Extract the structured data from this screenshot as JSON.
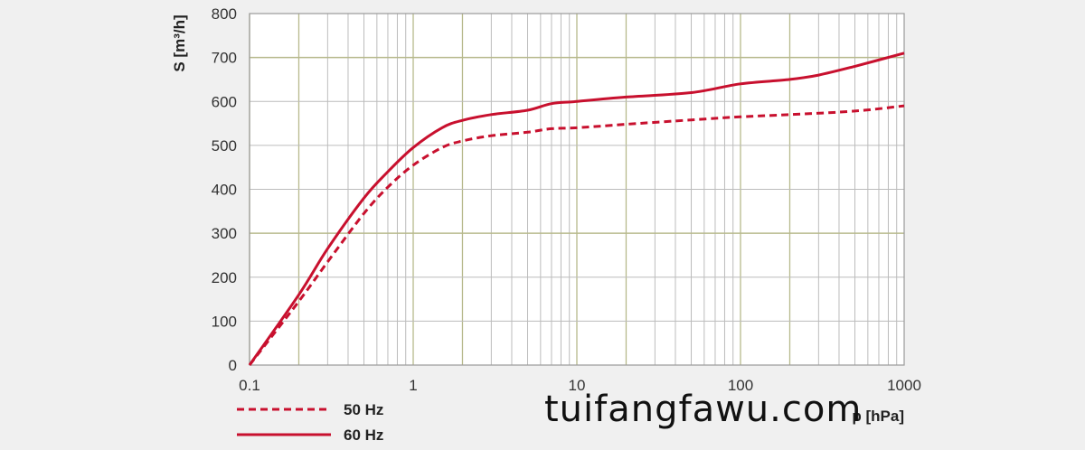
{
  "chart_data": {
    "type": "line",
    "xlabel": "p [hPa]",
    "ylabel": "S [m³/h]",
    "xscale": "log",
    "xlim": [
      0.1,
      1000
    ],
    "ylim": [
      0,
      800
    ],
    "xticks": [
      "0.1",
      "1",
      "10",
      "100",
      "1000"
    ],
    "yticks": [
      "0",
      "100",
      "200",
      "300",
      "400",
      "500",
      "600",
      "700",
      "800"
    ],
    "grid": true,
    "legend_position": "bottom-left",
    "series": [
      {
        "name": "50 Hz",
        "style": "dashed",
        "color": "#c8102e",
        "x": [
          0.1,
          0.2,
          0.3,
          0.5,
          0.7,
          1,
          1.5,
          2,
          3,
          5,
          7,
          10,
          20,
          50,
          100,
          200,
          500,
          1000
        ],
        "y": [
          0,
          145,
          235,
          345,
          405,
          455,
          495,
          510,
          522,
          530,
          538,
          540,
          548,
          558,
          565,
          570,
          578,
          590
        ]
      },
      {
        "name": "60 Hz",
        "style": "solid",
        "color": "#c8102e",
        "x": [
          0.1,
          0.2,
          0.3,
          0.5,
          0.7,
          1,
          1.5,
          2,
          3,
          5,
          7,
          10,
          20,
          50,
          100,
          200,
          300,
          500,
          1000
        ],
        "y": [
          0,
          160,
          265,
          380,
          440,
          495,
          540,
          557,
          570,
          580,
          595,
          600,
          610,
          620,
          640,
          650,
          660,
          680,
          710
        ]
      }
    ]
  },
  "watermark": "tuifangfawu.com"
}
